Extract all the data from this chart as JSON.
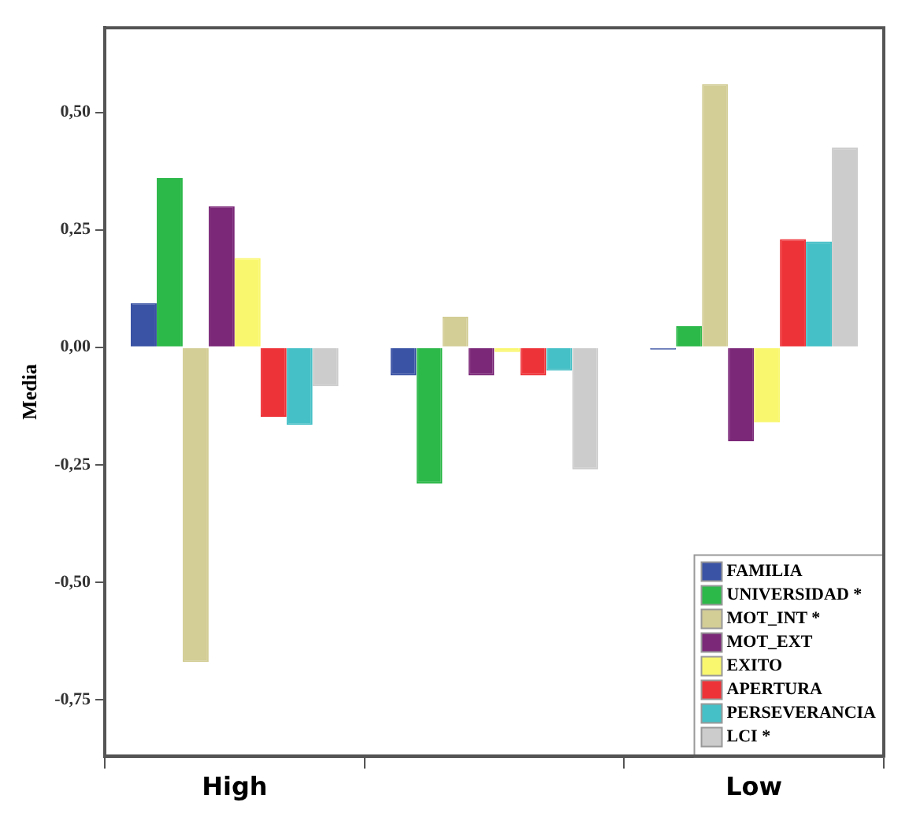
{
  "chart_data": {
    "type": "bar",
    "ylabel": "Media",
    "categories": [
      "High",
      null,
      "Low"
    ],
    "series": [
      {
        "name": "FAMILIA",
        "color": "#3a53a4",
        "values": [
          0.094,
          -0.06,
          -0.005
        ]
      },
      {
        "name": "UNIVERSIDAD *",
        "color": "#2db84a",
        "values": [
          0.36,
          -0.29,
          0.045
        ]
      },
      {
        "name": "MOT_INT *",
        "color": "#d3cd96",
        "values": [
          -0.67,
          0.065,
          0.56
        ]
      },
      {
        "name": "MOT_EXT",
        "color": "#7b2878",
        "values": [
          0.3,
          -0.06,
          -0.2
        ]
      },
      {
        "name": "EXITO",
        "color": "#f9f76e",
        "values": [
          0.19,
          -0.01,
          -0.16
        ]
      },
      {
        "name": "APERTURA",
        "color": "#ee3338",
        "values": [
          -0.148,
          -0.06,
          0.23
        ]
      },
      {
        "name": "PERSEVERANCIA",
        "color": "#45c0c6",
        "values": [
          -0.165,
          -0.05,
          0.225
        ]
      },
      {
        "name": "LCI *",
        "color": "#cccccc",
        "values": [
          -0.083,
          -0.26,
          0.425
        ]
      }
    ],
    "ylim": [
      -0.87,
      0.68
    ],
    "yticks": [
      {
        "value": -0.75,
        "label": "-0,75"
      },
      {
        "value": -0.5,
        "label": "-0,50"
      },
      {
        "value": -0.25,
        "label": "-0,25"
      },
      {
        "value": 0,
        "label": "0,00"
      },
      {
        "value": 0.25,
        "label": "0,25"
      },
      {
        "value": 0.5,
        "label": "0,50"
      }
    ],
    "grid": false,
    "legend": "bottom right"
  }
}
